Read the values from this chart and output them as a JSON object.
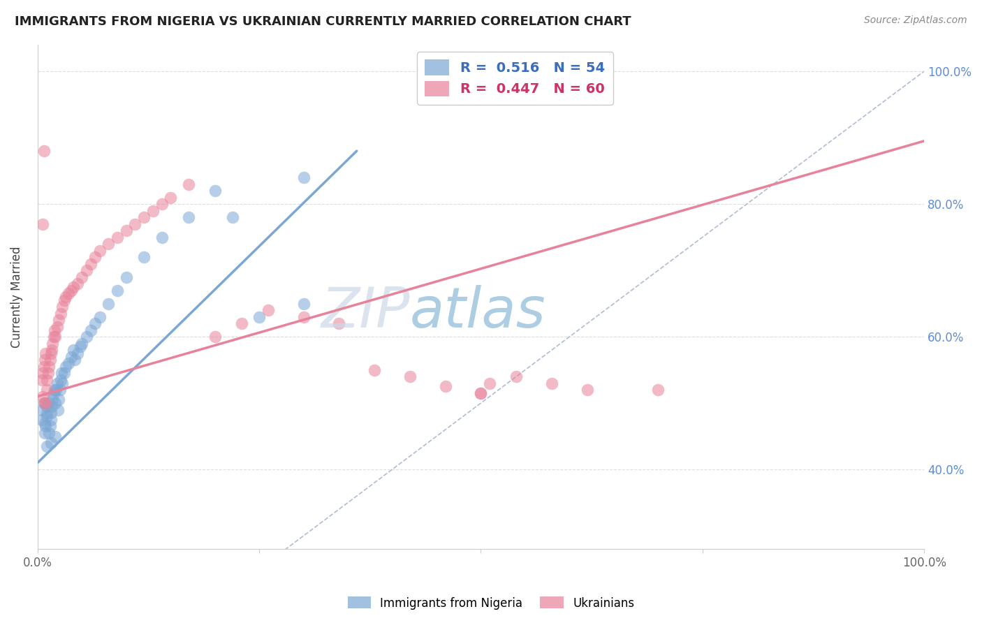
{
  "title": "IMMIGRANTS FROM NIGERIA VS UKRAINIAN CURRENTLY MARRIED CORRELATION CHART",
  "source": "Source: ZipAtlas.com",
  "ylabel": "Currently Married",
  "blue_R": 0.516,
  "blue_N": 54,
  "pink_R": 0.447,
  "pink_N": 60,
  "blue_color": "#7ba7d4",
  "pink_color": "#e8829a",
  "blue_label": "Immigrants from Nigeria",
  "pink_label": "Ukrainians",
  "background_color": "#ffffff",
  "grid_color": "#dddddd",
  "xlim": [
    0.0,
    1.0
  ],
  "ylim": [
    0.28,
    1.04
  ],
  "blue_scatter_x": [
    0.005,
    0.005,
    0.007,
    0.008,
    0.008,
    0.009,
    0.01,
    0.01,
    0.01,
    0.012,
    0.013,
    0.014,
    0.015,
    0.015,
    0.016,
    0.017,
    0.018,
    0.019,
    0.02,
    0.021,
    0.022,
    0.023,
    0.024,
    0.025,
    0.026,
    0.027,
    0.028,
    0.03,
    0.032,
    0.035,
    0.038,
    0.04,
    0.042,
    0.045,
    0.048,
    0.05,
    0.055,
    0.06,
    0.065,
    0.07,
    0.08,
    0.09,
    0.1,
    0.12,
    0.14,
    0.17,
    0.2,
    0.22,
    0.25,
    0.3,
    0.01,
    0.015,
    0.02,
    0.3
  ],
  "blue_scatter_y": [
    0.475,
    0.49,
    0.5,
    0.455,
    0.47,
    0.465,
    0.48,
    0.485,
    0.495,
    0.5,
    0.455,
    0.465,
    0.475,
    0.485,
    0.495,
    0.505,
    0.515,
    0.52,
    0.5,
    0.52,
    0.53,
    0.49,
    0.505,
    0.52,
    0.535,
    0.545,
    0.53,
    0.545,
    0.555,
    0.56,
    0.57,
    0.58,
    0.565,
    0.575,
    0.585,
    0.59,
    0.6,
    0.61,
    0.62,
    0.63,
    0.65,
    0.67,
    0.69,
    0.72,
    0.75,
    0.78,
    0.82,
    0.78,
    0.63,
    0.65,
    0.435,
    0.44,
    0.45,
    0.84
  ],
  "pink_scatter_x": [
    0.005,
    0.006,
    0.007,
    0.008,
    0.009,
    0.01,
    0.01,
    0.012,
    0.013,
    0.014,
    0.015,
    0.016,
    0.017,
    0.018,
    0.019,
    0.02,
    0.022,
    0.024,
    0.026,
    0.028,
    0.03,
    0.032,
    0.035,
    0.038,
    0.04,
    0.045,
    0.05,
    0.055,
    0.06,
    0.065,
    0.07,
    0.08,
    0.09,
    0.1,
    0.11,
    0.12,
    0.13,
    0.14,
    0.15,
    0.17,
    0.2,
    0.23,
    0.26,
    0.3,
    0.34,
    0.38,
    0.42,
    0.46,
    0.5,
    0.54,
    0.58,
    0.62,
    0.006,
    0.008,
    0.009,
    0.5,
    0.51,
    0.7,
    0.006,
    0.007
  ],
  "pink_scatter_y": [
    0.535,
    0.545,
    0.555,
    0.565,
    0.575,
    0.52,
    0.535,
    0.545,
    0.555,
    0.565,
    0.575,
    0.58,
    0.59,
    0.6,
    0.61,
    0.6,
    0.615,
    0.625,
    0.635,
    0.645,
    0.655,
    0.66,
    0.665,
    0.67,
    0.675,
    0.68,
    0.69,
    0.7,
    0.71,
    0.72,
    0.73,
    0.74,
    0.75,
    0.76,
    0.77,
    0.78,
    0.79,
    0.8,
    0.81,
    0.83,
    0.6,
    0.62,
    0.64,
    0.63,
    0.62,
    0.55,
    0.54,
    0.525,
    0.515,
    0.54,
    0.53,
    0.52,
    0.51,
    0.5,
    0.5,
    0.515,
    0.53,
    0.52,
    0.77,
    0.88
  ],
  "blue_line_x0": 0.0,
  "blue_line_y0": 0.41,
  "blue_line_x1": 0.36,
  "blue_line_y1": 0.88,
  "pink_line_x0": 0.0,
  "pink_line_y0": 0.51,
  "pink_line_x1": 1.0,
  "pink_line_y1": 0.895,
  "diag_line_color": "#b0bcd4"
}
